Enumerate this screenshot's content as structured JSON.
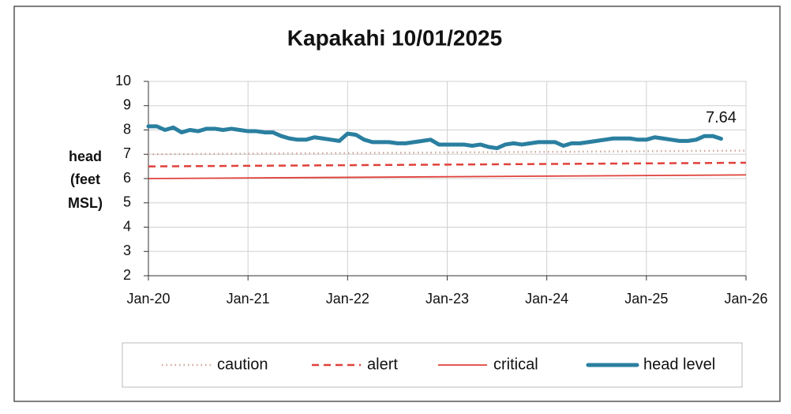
{
  "chart_data": {
    "type": "line",
    "title": "Kapakahi 10/01/2025",
    "ylabel": [
      "head",
      "(feet",
      "MSL)"
    ],
    "xlim": [
      "2020-01",
      "2026-01"
    ],
    "xticks": [
      {
        "value": "2020-01",
        "label": "Jan-20"
      },
      {
        "value": "2021-01",
        "label": "Jan-21"
      },
      {
        "value": "2022-01",
        "label": "Jan-22"
      },
      {
        "value": "2023-01",
        "label": "Jan-23"
      },
      {
        "value": "2024-01",
        "label": "Jan-24"
      },
      {
        "value": "2025-01",
        "label": "Jan-25"
      },
      {
        "value": "2026-01",
        "label": "Jan-26"
      }
    ],
    "ylim": [
      2,
      10
    ],
    "yticks": [
      2,
      3,
      4,
      5,
      6,
      7,
      8,
      9,
      10
    ],
    "grid": true,
    "legend": "bottom",
    "series": [
      {
        "name": "caution",
        "color": "#cfa99a",
        "style": "dotted",
        "x": [
          "2020-01",
          "2026-01"
        ],
        "values": [
          7.0,
          7.15
        ]
      },
      {
        "name": "alert",
        "color": "#e0413a",
        "style": "dashed",
        "x": [
          "2020-01",
          "2026-01"
        ],
        "values": [
          6.5,
          6.65
        ]
      },
      {
        "name": "critical",
        "color": "#e0413a",
        "style": "solid",
        "x": [
          "2020-01",
          "2026-01"
        ],
        "values": [
          6.0,
          6.15
        ]
      },
      {
        "name": "head level",
        "color": "#2a7fa0",
        "style": "thick",
        "x": [
          "2020-01",
          "2020-02",
          "2020-03",
          "2020-04",
          "2020-05",
          "2020-06",
          "2020-07",
          "2020-08",
          "2020-09",
          "2020-10",
          "2020-11",
          "2020-12",
          "2021-01",
          "2021-02",
          "2021-03",
          "2021-04",
          "2021-05",
          "2021-06",
          "2021-07",
          "2021-08",
          "2021-09",
          "2021-10",
          "2021-11",
          "2021-12",
          "2022-01",
          "2022-02",
          "2022-03",
          "2022-04",
          "2022-05",
          "2022-06",
          "2022-07",
          "2022-08",
          "2022-09",
          "2022-10",
          "2022-11",
          "2022-12",
          "2023-01",
          "2023-02",
          "2023-03",
          "2023-04",
          "2023-05",
          "2023-06",
          "2023-07",
          "2023-08",
          "2023-09",
          "2023-10",
          "2023-11",
          "2023-12",
          "2024-01",
          "2024-02",
          "2024-03",
          "2024-04",
          "2024-05",
          "2024-06",
          "2024-07",
          "2024-08",
          "2024-09",
          "2024-10",
          "2024-11",
          "2024-12",
          "2025-01",
          "2025-02",
          "2025-03",
          "2025-04",
          "2025-05",
          "2025-06",
          "2025-07",
          "2025-08",
          "2025-09",
          "2025-10"
        ],
        "values": [
          8.15,
          8.15,
          8.0,
          8.1,
          7.9,
          8.0,
          7.95,
          8.05,
          8.05,
          8.0,
          8.05,
          8.0,
          7.95,
          7.95,
          7.9,
          7.9,
          7.75,
          7.65,
          7.6,
          7.6,
          7.7,
          7.65,
          7.6,
          7.55,
          7.85,
          7.8,
          7.6,
          7.5,
          7.5,
          7.5,
          7.45,
          7.45,
          7.5,
          7.55,
          7.6,
          7.4,
          7.4,
          7.4,
          7.4,
          7.35,
          7.4,
          7.3,
          7.25,
          7.4,
          7.45,
          7.4,
          7.45,
          7.5,
          7.5,
          7.5,
          7.35,
          7.45,
          7.45,
          7.5,
          7.55,
          7.6,
          7.65,
          7.65,
          7.65,
          7.6,
          7.6,
          7.7,
          7.65,
          7.6,
          7.55,
          7.55,
          7.6,
          7.75,
          7.75,
          7.64
        ]
      }
    ]
  }
}
